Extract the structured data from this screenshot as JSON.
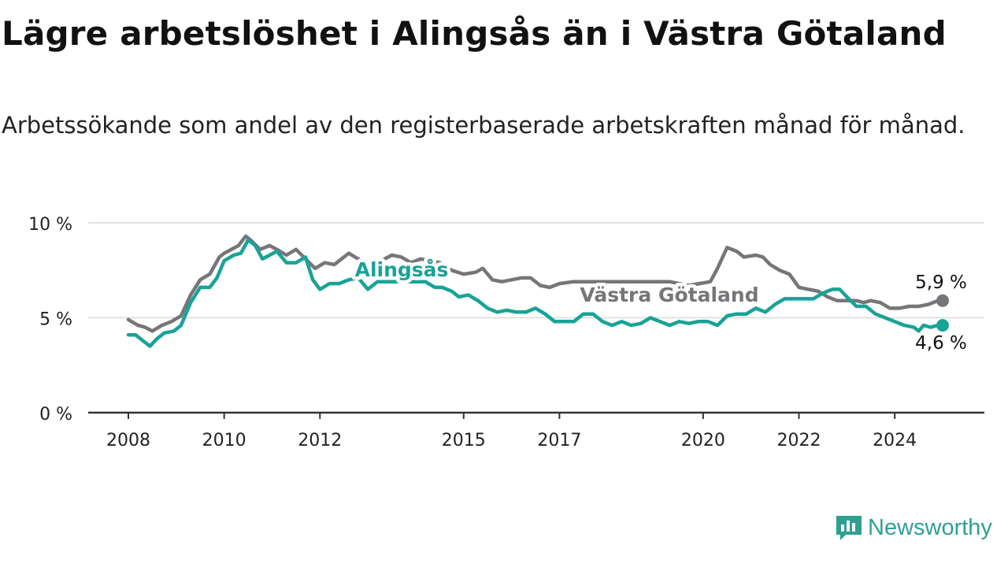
{
  "title": "Lägre arbetslöshet i Alingsås än i Västra Götaland",
  "subtitle": "Arbetssökande som andel av den registerbaserade arbetskraften månad för månad.",
  "brand": {
    "name": "Newsworthy",
    "icon": "newsworthy-logo-icon",
    "color": "#2f9f92"
  },
  "chart_data": {
    "type": "line",
    "ylim": [
      0,
      10
    ],
    "xlim": [
      2008.0,
      2025.0
    ],
    "yticks": [
      {
        "value": 0,
        "label": "0 %"
      },
      {
        "value": 5,
        "label": "5 %"
      },
      {
        "value": 10,
        "label": "10 %"
      }
    ],
    "xticks": [
      {
        "value": 2008.0,
        "label": "2008"
      },
      {
        "value": 2010.0,
        "label": "2010"
      },
      {
        "value": 2012.0,
        "label": "2012"
      },
      {
        "value": 2015.0,
        "label": "2015"
      },
      {
        "value": 2017.0,
        "label": "2017"
      },
      {
        "value": 2020.0,
        "label": "2020"
      },
      {
        "value": 2022.0,
        "label": "2022"
      },
      {
        "value": 2024.0,
        "label": "2024"
      }
    ],
    "grid": true,
    "series": [
      {
        "name": "Västra Götaland",
        "color": "#76767a",
        "end_label": "5,9 %",
        "label_position": "above-end",
        "points": [
          [
            2008.0,
            4.9
          ],
          [
            2008.2,
            4.6
          ],
          [
            2008.35,
            4.5
          ],
          [
            2008.5,
            4.3
          ],
          [
            2008.7,
            4.6
          ],
          [
            2008.9,
            4.8
          ],
          [
            2009.1,
            5.1
          ],
          [
            2009.3,
            6.2
          ],
          [
            2009.5,
            7.0
          ],
          [
            2009.7,
            7.3
          ],
          [
            2009.9,
            8.2
          ],
          [
            2010.0,
            8.4
          ],
          [
            2010.3,
            8.8
          ],
          [
            2010.45,
            9.3
          ],
          [
            2010.55,
            9.1
          ],
          [
            2010.75,
            8.6
          ],
          [
            2010.95,
            8.8
          ],
          [
            2011.1,
            8.6
          ],
          [
            2011.3,
            8.3
          ],
          [
            2011.5,
            8.6
          ],
          [
            2011.7,
            8.1
          ],
          [
            2011.9,
            7.6
          ],
          [
            2012.1,
            7.9
          ],
          [
            2012.3,
            7.8
          ],
          [
            2012.45,
            8.1
          ],
          [
            2012.6,
            8.4
          ],
          [
            2012.8,
            8.1
          ],
          [
            2013.0,
            7.7
          ],
          [
            2013.2,
            7.9
          ],
          [
            2013.35,
            8.1
          ],
          [
            2013.5,
            8.3
          ],
          [
            2013.7,
            8.2
          ],
          [
            2013.9,
            7.9
          ],
          [
            2014.1,
            8.1
          ],
          [
            2014.3,
            8.0
          ],
          [
            2014.5,
            7.9
          ],
          [
            2014.75,
            7.5
          ],
          [
            2015.0,
            7.3
          ],
          [
            2015.25,
            7.4
          ],
          [
            2015.4,
            7.6
          ],
          [
            2015.6,
            7.0
          ],
          [
            2015.8,
            6.9
          ],
          [
            2016.0,
            7.0
          ],
          [
            2016.2,
            7.1
          ],
          [
            2016.4,
            7.1
          ],
          [
            2016.6,
            6.7
          ],
          [
            2016.8,
            6.6
          ],
          [
            2017.0,
            6.8
          ],
          [
            2017.3,
            6.9
          ],
          [
            2019.3,
            6.9
          ],
          [
            2019.7,
            6.7
          ],
          [
            2020.15,
            6.9
          ],
          [
            2020.3,
            7.6
          ],
          [
            2020.5,
            8.7
          ],
          [
            2020.7,
            8.5
          ],
          [
            2020.85,
            8.2
          ],
          [
            2021.1,
            8.3
          ],
          [
            2021.25,
            8.2
          ],
          [
            2021.4,
            7.8
          ],
          [
            2021.6,
            7.5
          ],
          [
            2021.8,
            7.3
          ],
          [
            2022.0,
            6.6
          ],
          [
            2022.2,
            6.5
          ],
          [
            2022.4,
            6.4
          ],
          [
            2022.6,
            6.1
          ],
          [
            2022.8,
            5.9
          ],
          [
            2023.0,
            5.9
          ],
          [
            2023.2,
            5.9
          ],
          [
            2023.35,
            5.8
          ],
          [
            2023.5,
            5.9
          ],
          [
            2023.7,
            5.8
          ],
          [
            2023.9,
            5.5
          ],
          [
            2024.1,
            5.5
          ],
          [
            2024.3,
            5.6
          ],
          [
            2024.5,
            5.6
          ],
          [
            2024.7,
            5.7
          ],
          [
            2024.9,
            5.9
          ],
          [
            2025.0,
            5.9
          ]
        ]
      },
      {
        "name": "Alingsås",
        "color": "#18a397",
        "end_label": "4,6 %",
        "label_position": "below-end",
        "points": [
          [
            2008.0,
            4.1
          ],
          [
            2008.15,
            4.1
          ],
          [
            2008.3,
            3.8
          ],
          [
            2008.45,
            3.5
          ],
          [
            2008.6,
            3.9
          ],
          [
            2008.75,
            4.2
          ],
          [
            2008.95,
            4.3
          ],
          [
            2009.1,
            4.6
          ],
          [
            2009.3,
            5.8
          ],
          [
            2009.5,
            6.6
          ],
          [
            2009.7,
            6.6
          ],
          [
            2009.85,
            7.1
          ],
          [
            2010.0,
            8.0
          ],
          [
            2010.2,
            8.3
          ],
          [
            2010.35,
            8.4
          ],
          [
            2010.5,
            9.1
          ],
          [
            2010.65,
            8.8
          ],
          [
            2010.8,
            8.1
          ],
          [
            2010.95,
            8.3
          ],
          [
            2011.1,
            8.5
          ],
          [
            2011.3,
            7.9
          ],
          [
            2011.5,
            7.9
          ],
          [
            2011.7,
            8.2
          ],
          [
            2011.85,
            7.0
          ],
          [
            2012.0,
            6.5
          ],
          [
            2012.2,
            6.8
          ],
          [
            2012.4,
            6.8
          ],
          [
            2012.6,
            7.0
          ],
          [
            2012.8,
            7.1
          ],
          [
            2013.0,
            6.5
          ],
          [
            2013.2,
            6.9
          ],
          [
            2014.2,
            6.9
          ],
          [
            2014.4,
            6.6
          ],
          [
            2014.55,
            6.6
          ],
          [
            2014.75,
            6.4
          ],
          [
            2014.9,
            6.1
          ],
          [
            2015.1,
            6.2
          ],
          [
            2015.3,
            5.9
          ],
          [
            2015.5,
            5.5
          ],
          [
            2015.7,
            5.3
          ],
          [
            2015.9,
            5.4
          ],
          [
            2016.1,
            5.3
          ],
          [
            2016.3,
            5.3
          ],
          [
            2016.5,
            5.5
          ],
          [
            2016.7,
            5.2
          ],
          [
            2016.9,
            4.8
          ],
          [
            2017.1,
            4.8
          ],
          [
            2017.3,
            4.8
          ],
          [
            2017.5,
            5.2
          ],
          [
            2017.7,
            5.2
          ],
          [
            2017.9,
            4.8
          ],
          [
            2018.1,
            4.6
          ],
          [
            2018.3,
            4.8
          ],
          [
            2018.5,
            4.6
          ],
          [
            2018.7,
            4.7
          ],
          [
            2018.9,
            5.0
          ],
          [
            2019.1,
            4.8
          ],
          [
            2019.3,
            4.6
          ],
          [
            2019.5,
            4.8
          ],
          [
            2019.7,
            4.7
          ],
          [
            2019.9,
            4.8
          ],
          [
            2020.1,
            4.8
          ],
          [
            2020.3,
            4.6
          ],
          [
            2020.5,
            5.1
          ],
          [
            2020.7,
            5.2
          ],
          [
            2020.9,
            5.2
          ],
          [
            2021.1,
            5.5
          ],
          [
            2021.3,
            5.3
          ],
          [
            2021.5,
            5.7
          ],
          [
            2021.7,
            6.0
          ],
          [
            2022.3,
            6.0
          ],
          [
            2022.5,
            6.3
          ],
          [
            2022.7,
            6.5
          ],
          [
            2022.85,
            6.5
          ],
          [
            2023.0,
            6.1
          ],
          [
            2023.2,
            5.6
          ],
          [
            2023.4,
            5.6
          ],
          [
            2023.6,
            5.2
          ],
          [
            2023.8,
            5.0
          ],
          [
            2024.0,
            4.8
          ],
          [
            2024.2,
            4.6
          ],
          [
            2024.4,
            4.5
          ],
          [
            2024.5,
            4.3
          ],
          [
            2024.6,
            4.6
          ],
          [
            2024.75,
            4.5
          ],
          [
            2024.9,
            4.6
          ],
          [
            2025.0,
            4.6
          ]
        ]
      }
    ],
    "annotations": [
      {
        "text": "Alingsås",
        "series": "Alingsås"
      },
      {
        "text": "Västra Götaland",
        "series": "Västra Götaland"
      }
    ]
  }
}
